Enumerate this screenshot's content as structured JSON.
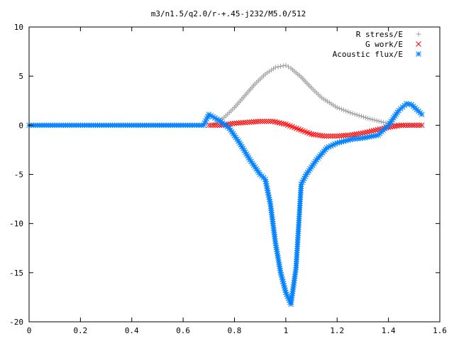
{
  "chart_data": {
    "type": "scatter",
    "title": "m3/n1.5/q2.0/r-+.45-j232/M5.0/512",
    "xlabel": "",
    "ylabel": "",
    "xlim": [
      0,
      1.6
    ],
    "ylim": [
      -20,
      10
    ],
    "xticks": [
      "0",
      "0.2",
      "0.4",
      "0.6",
      "0.8",
      "1",
      "1.2",
      "1.4",
      "1.6"
    ],
    "yticks": [
      "10",
      "5",
      "0",
      "-5",
      "-10",
      "-15",
      "-20"
    ],
    "legend_position": "top-right",
    "grid": false,
    "series": [
      {
        "name": "R stress/E",
        "marker": "plus",
        "color": "#a0a0a0",
        "x": [
          0.72,
          0.76,
          0.8,
          0.84,
          0.88,
          0.92,
          0.96,
          1.0,
          1.02,
          1.06,
          1.1,
          1.14,
          1.2,
          1.26,
          1.32,
          1.38,
          1.42,
          1.46,
          1.5,
          1.53
        ],
        "y": [
          0.1,
          0.8,
          1.8,
          3.0,
          4.2,
          5.2,
          5.9,
          6.1,
          5.8,
          4.9,
          3.8,
          2.8,
          1.8,
          1.2,
          0.7,
          0.3,
          0.1,
          0.0,
          0.0,
          0.0
        ]
      },
      {
        "name": "G work/E",
        "marker": "cross",
        "color": "#ff0000",
        "x": [
          0.7,
          0.75,
          0.8,
          0.85,
          0.9,
          0.95,
          1.0,
          1.05,
          1.1,
          1.15,
          1.2,
          1.25,
          1.3,
          1.35,
          1.4,
          1.45,
          1.5,
          1.53
        ],
        "y": [
          0.0,
          0.0,
          0.2,
          0.3,
          0.4,
          0.4,
          0.1,
          -0.4,
          -0.9,
          -1.1,
          -1.1,
          -1.0,
          -0.8,
          -0.5,
          -0.2,
          0.0,
          0.0,
          0.0
        ]
      },
      {
        "name": "Acoustic flux/E",
        "marker": "star",
        "color": "#0080ff",
        "x": [
          0.0,
          0.1,
          0.2,
          0.3,
          0.4,
          0.5,
          0.6,
          0.68,
          0.7,
          0.74,
          0.78,
          0.82,
          0.86,
          0.9,
          0.92,
          0.94,
          0.96,
          0.98,
          1.0,
          1.02,
          1.04,
          1.06,
          1.08,
          1.12,
          1.16,
          1.2,
          1.26,
          1.3,
          1.36,
          1.4,
          1.44,
          1.47,
          1.49,
          1.51,
          1.53
        ],
        "y": [
          0.0,
          0.0,
          0.0,
          0.0,
          0.0,
          0.0,
          0.0,
          0.0,
          1.1,
          0.5,
          -0.3,
          -1.8,
          -3.5,
          -5.0,
          -5.5,
          -8.0,
          -12.0,
          -15.0,
          -17.0,
          -18.2,
          -14.5,
          -6.0,
          -5.0,
          -3.5,
          -2.3,
          -1.8,
          -1.4,
          -1.3,
          -1.0,
          0.0,
          1.5,
          2.2,
          2.1,
          1.6,
          1.1
        ]
      }
    ]
  }
}
